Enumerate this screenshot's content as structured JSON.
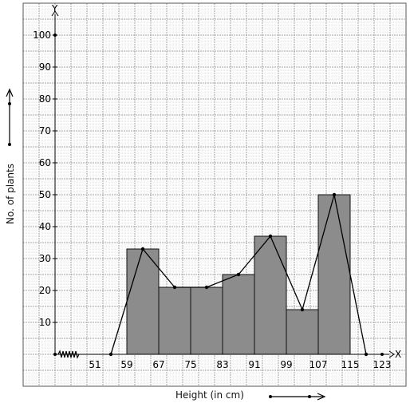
{
  "chart_data": {
    "type": "bar",
    "subtype": "histogram-with-frequency-polygon",
    "xlabel": "Height (in cm)",
    "ylabel": "No. of plants",
    "x_axis_letter": "X",
    "y_axis_letter": "Y",
    "x_ticks": [
      "51",
      "59",
      "67",
      "75",
      "83",
      "91",
      "99",
      "107",
      "115",
      "123"
    ],
    "y_ticks": [
      "10",
      "20",
      "30",
      "40",
      "50",
      "60",
      "70",
      "80",
      "90",
      "100"
    ],
    "bins": [
      {
        "from": 59,
        "to": 67,
        "value": 33
      },
      {
        "from": 67,
        "to": 75,
        "value": 21
      },
      {
        "from": 75,
        "to": 83,
        "value": 21
      },
      {
        "from": 83,
        "to": 91,
        "value": 25
      },
      {
        "from": 91,
        "to": 99,
        "value": 37
      },
      {
        "from": 99,
        "to": 107,
        "value": 14
      },
      {
        "from": 107,
        "to": 115,
        "value": 50
      }
    ],
    "polygon": {
      "x": [
        55,
        63,
        71,
        79,
        87,
        95,
        103,
        111,
        119
      ],
      "y": [
        0,
        33,
        21,
        21,
        25,
        37,
        14,
        50,
        0
      ]
    },
    "xlim": [
      41,
      127
    ],
    "ylim": [
      -10,
      108
    ],
    "axis_break": true,
    "grid": true,
    "colors": {
      "bar_fill": "#8c8c8c",
      "bar_edge": "#111111",
      "polygon": "#000000",
      "grid_major": "#8a8a8a",
      "grid_minor": "#cfcfcf"
    }
  }
}
